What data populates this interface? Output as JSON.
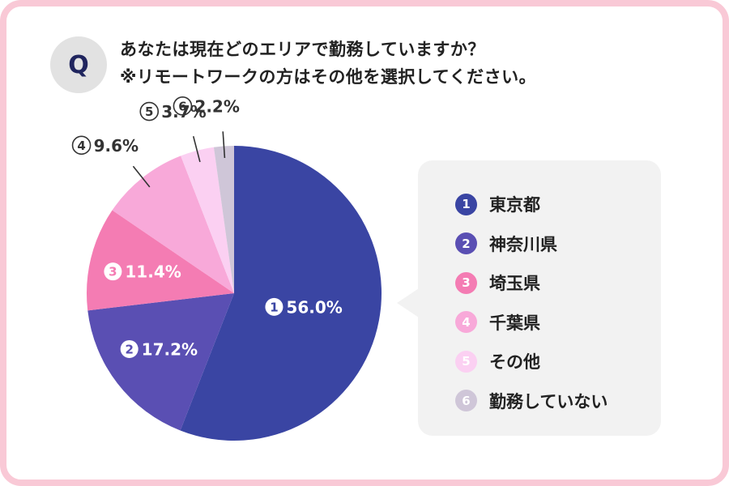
{
  "question": {
    "badge": "Q",
    "line1": "あなたは現在どのエリアで勤務していますか？",
    "line2": "※リモートワークの方はその他を選択してください。"
  },
  "chart_data": {
    "type": "pie",
    "categories": [
      "東京都",
      "神奈川県",
      "埼玉県",
      "千葉県",
      "その他",
      "勤務していない"
    ],
    "values": [
      56.0,
      17.2,
      11.4,
      9.6,
      3.7,
      2.2
    ],
    "value_labels": [
      "56.0%",
      "17.2%",
      "11.4%",
      "9.6%",
      "3.7%",
      "2.2%"
    ],
    "markers": [
      "1",
      "2",
      "3",
      "4",
      "5",
      "6"
    ],
    "colors": [
      "#3a45a3",
      "#5a4fb3",
      "#f47cb3",
      "#f8a9d9",
      "#fbd0f2",
      "#cfc6d8"
    ],
    "label_placement": [
      "inside",
      "inside",
      "inside",
      "outside",
      "outside",
      "outside"
    ],
    "legend_position": "right"
  }
}
